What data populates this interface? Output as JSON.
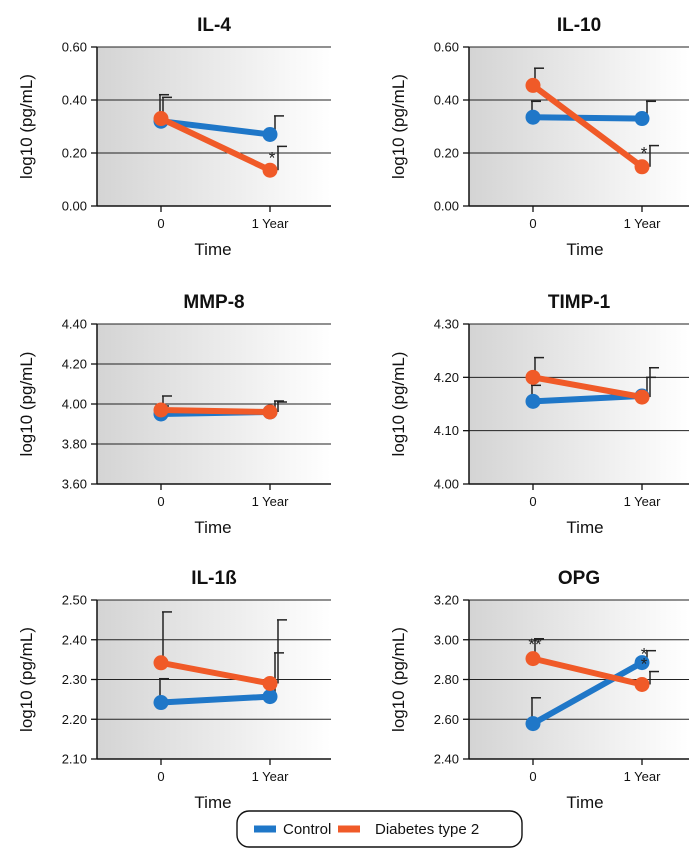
{
  "colors": {
    "control": "#1f77c8",
    "diabetes": "#f05a28",
    "grid": "#222222",
    "panel_bg_left": "#d6d6d6",
    "panel_bg_right": "#ffffff"
  },
  "legend": {
    "items": [
      {
        "label": "Control",
        "color": "#1f77c8"
      },
      {
        "label": "Diabetes type 2",
        "color": "#f05a28"
      }
    ]
  },
  "chart_data": [
    {
      "type": "line",
      "title": "IL-4",
      "xlabel": "Time",
      "ylabel": "log10 (pg/mL)",
      "categories": [
        "0",
        "1 Year"
      ],
      "ylim": [
        0,
        0.6
      ],
      "yticks": [
        "0.00",
        "0.20",
        "0.40",
        "0.60"
      ],
      "grid": true,
      "series": [
        {
          "name": "Control",
          "values": [
            0.32,
            0.27
          ],
          "error": [
            0.1,
            0.07
          ]
        },
        {
          "name": "Diabetes type 2",
          "values": [
            0.33,
            0.135
          ],
          "error": [
            0.08,
            0.09
          ]
        }
      ],
      "annotations": [
        {
          "x": "1 Year",
          "y": 0.205,
          "text": "*"
        }
      ]
    },
    {
      "type": "line",
      "title": "IL-10",
      "xlabel": "Time",
      "ylabel": "log10 (pg/mL)",
      "categories": [
        "0",
        "1 Year"
      ],
      "ylim": [
        0,
        0.6
      ],
      "yticks": [
        "0.00",
        "0.20",
        "0.40",
        "0.60"
      ],
      "grid": true,
      "series": [
        {
          "name": "Control",
          "values": [
            0.335,
            0.33
          ],
          "error": [
            0.06,
            0.065
          ]
        },
        {
          "name": "Diabetes type 2",
          "values": [
            0.455,
            0.148
          ],
          "error": [
            0.065,
            0.08
          ]
        }
      ],
      "annotations": [
        {
          "x": "1 Year",
          "y": 0.225,
          "text": "*"
        }
      ]
    },
    {
      "type": "line",
      "title": "MMP-8",
      "xlabel": "Time",
      "ylabel": "log10 (pg/mL)",
      "categories": [
        "0",
        "1 Year"
      ],
      "ylim": [
        3.6,
        4.4
      ],
      "yticks": [
        "3.60",
        "3.80",
        "4.00",
        "4.20",
        "4.40"
      ],
      "grid": true,
      "series": [
        {
          "name": "Control",
          "values": [
            3.95,
            3.96
          ],
          "error": [
            0.04,
            0.055
          ]
        },
        {
          "name": "Diabetes type 2",
          "values": [
            3.97,
            3.96
          ],
          "error": [
            0.07,
            0.05
          ]
        }
      ],
      "annotations": []
    },
    {
      "type": "line",
      "title": "TIMP-1",
      "xlabel": "Time",
      "ylabel": "log10 (pg/mL)",
      "categories": [
        "0",
        "1 Year"
      ],
      "ylim": [
        4.0,
        4.3
      ],
      "yticks": [
        "4.00",
        "4.10",
        "4.20",
        "4.30"
      ],
      "grid": true,
      "series": [
        {
          "name": "Control",
          "values": [
            4.155,
            4.165
          ],
          "error": [
            0.03,
            0.035
          ]
        },
        {
          "name": "Diabetes type 2",
          "values": [
            4.2,
            4.163
          ],
          "error": [
            0.037,
            0.055
          ]
        }
      ],
      "annotations": []
    },
    {
      "type": "line",
      "title": "IL-1ß",
      "xlabel": "Time",
      "ylabel": "log10 (pg/mL)",
      "categories": [
        "0",
        "1 Year"
      ],
      "ylim": [
        2.1,
        2.5
      ],
      "yticks": [
        "2.10",
        "2.20",
        "2.30",
        "2.40",
        "2.50"
      ],
      "grid": true,
      "series": [
        {
          "name": "Control",
          "values": [
            2.242,
            2.257
          ],
          "error": [
            0.06,
            0.11
          ]
        },
        {
          "name": "Diabetes type 2",
          "values": [
            2.342,
            2.29
          ],
          "error": [
            0.128,
            0.16
          ]
        }
      ],
      "annotations": []
    },
    {
      "type": "line",
      "title": "OPG",
      "xlabel": "Time",
      "ylabel": "log10 (pg/mL)",
      "categories": [
        "0",
        "1 Year"
      ],
      "ylim": [
        2.4,
        3.2
      ],
      "yticks": [
        "2.40",
        "2.60",
        "2.80",
        "3.00",
        "3.20"
      ],
      "grid": true,
      "series": [
        {
          "name": "Control",
          "values": [
            2.578,
            2.885
          ],
          "error": [
            0.13,
            0.06
          ]
        },
        {
          "name": "Diabetes type 2",
          "values": [
            2.905,
            2.775
          ],
          "error": [
            0.1,
            0.065
          ]
        }
      ],
      "annotations": [
        {
          "x": "0",
          "y": 3.01,
          "text": "**"
        },
        {
          "x": "1 Year",
          "y": 2.96,
          "text": "*"
        },
        {
          "x": "1 Year",
          "y": 2.91,
          "text": "*"
        }
      ]
    }
  ]
}
